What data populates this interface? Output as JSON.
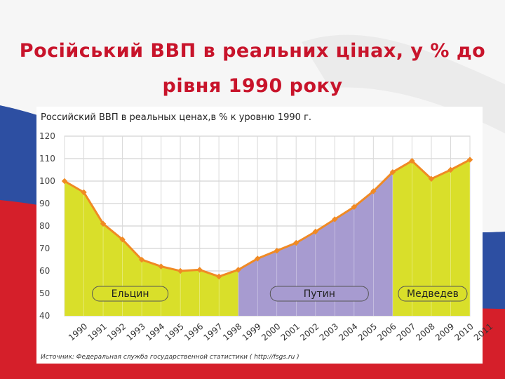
{
  "slide": {
    "title": "Російський ВВП в реальних цінах, у % до рівня 1990 року"
  },
  "colors": {
    "title": "#c8142b",
    "line": "#f08a24",
    "eltsin_fill": "#d9df2a",
    "putin_fill": "#a79bd0",
    "medvedev_fill": "#d9df2a"
  },
  "chart_data": {
    "type": "area",
    "title": "Российский ВВП в реальных ценах,в % к уровню 1990 г.",
    "x": [
      "1990",
      "1991",
      "1992",
      "1993",
      "1994",
      "1995",
      "1996",
      "1997",
      "1998",
      "1999",
      "2000",
      "2001",
      "2002",
      "2003",
      "2004",
      "2005",
      "2006",
      "2007",
      "2008",
      "2009",
      "2010",
      "2011"
    ],
    "values": [
      100,
      95,
      81,
      74,
      65,
      62,
      60,
      60.5,
      57.5,
      60.5,
      65.5,
      69,
      72.5,
      77.5,
      83,
      88.5,
      95.5,
      104,
      109,
      101,
      105,
      109.5
    ],
    "yticks": [
      120,
      110,
      100,
      90,
      80,
      70,
      60,
      50,
      40
    ],
    "ylim": [
      40,
      120
    ],
    "grid": true,
    "periods": [
      {
        "label": "Ельцин",
        "from": "1990",
        "to": "1999"
      },
      {
        "label": "Путин",
        "from": "1999",
        "to": "2007"
      },
      {
        "label": "Медведев",
        "from": "2007",
        "to": "2011"
      }
    ],
    "source": "Источник: Федеральная служба государственной статистики ( http://fsgs.ru )"
  }
}
